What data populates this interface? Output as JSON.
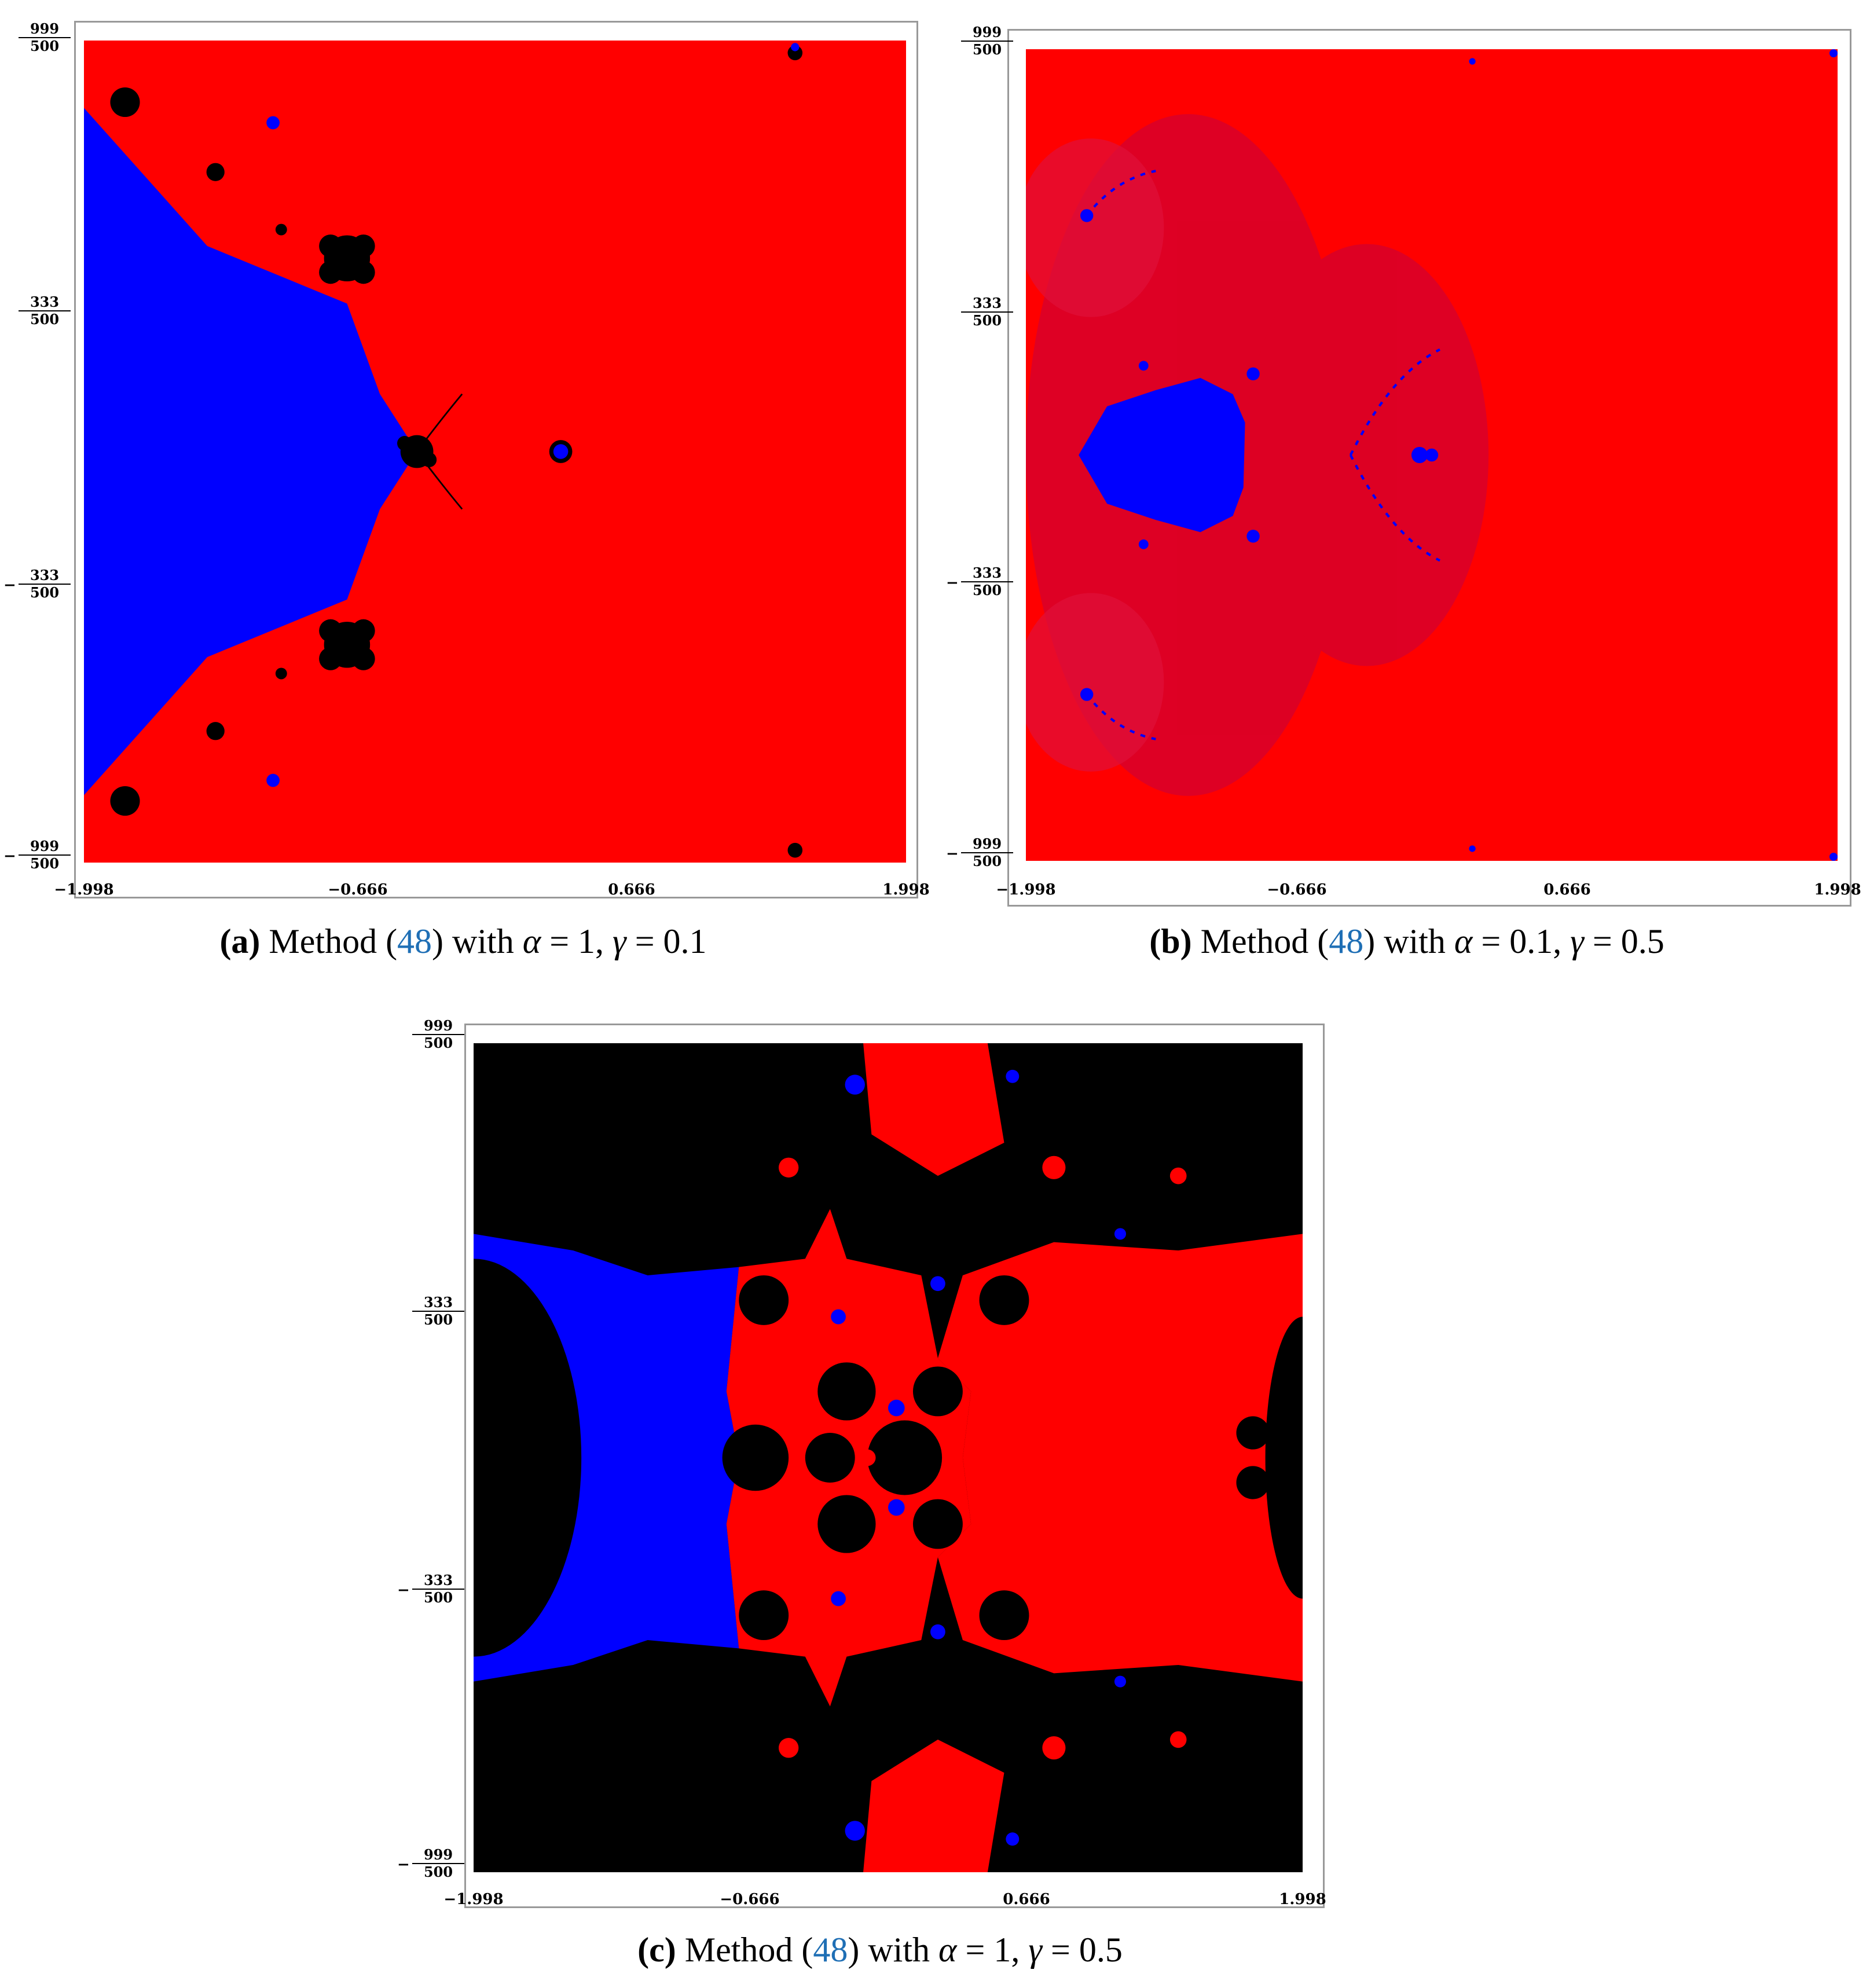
{
  "axes": {
    "x_ticks": [
      "−1.998",
      "−0.666",
      "0.666",
      "1.998"
    ],
    "y_ticks": [
      {
        "neg": "",
        "num": "999",
        "den": "500"
      },
      {
        "neg": "",
        "num": "333",
        "den": "500"
      },
      {
        "neg": "−",
        "num": "333",
        "den": "500"
      },
      {
        "neg": "−",
        "num": "999",
        "den": "500"
      }
    ]
  },
  "colors": {
    "root1": "#0000ff",
    "root2": "#ff0000",
    "divergent": "#000000",
    "frame": "#999999"
  },
  "panels": [
    {
      "label": "(a)",
      "pre": "Method (",
      "ref": "48",
      "post": ") with ",
      "alpha_sym": "α",
      "alpha_val": " = 1, ",
      "gamma_sym": "γ",
      "gamma_val": " = 0.1"
    },
    {
      "label": "(b)",
      "pre": "Method (",
      "ref": "48",
      "post": ") with ",
      "alpha_sym": "α",
      "alpha_val": " = 0.1, ",
      "gamma_sym": "γ",
      "gamma_val": " = 0.5"
    },
    {
      "label": "(c)",
      "pre": "Method (",
      "ref": "48",
      "post": ") with ",
      "alpha_sym": "α",
      "alpha_val": " = 1, ",
      "gamma_sym": "γ",
      "gamma_val": " = 0.5"
    }
  ]
}
